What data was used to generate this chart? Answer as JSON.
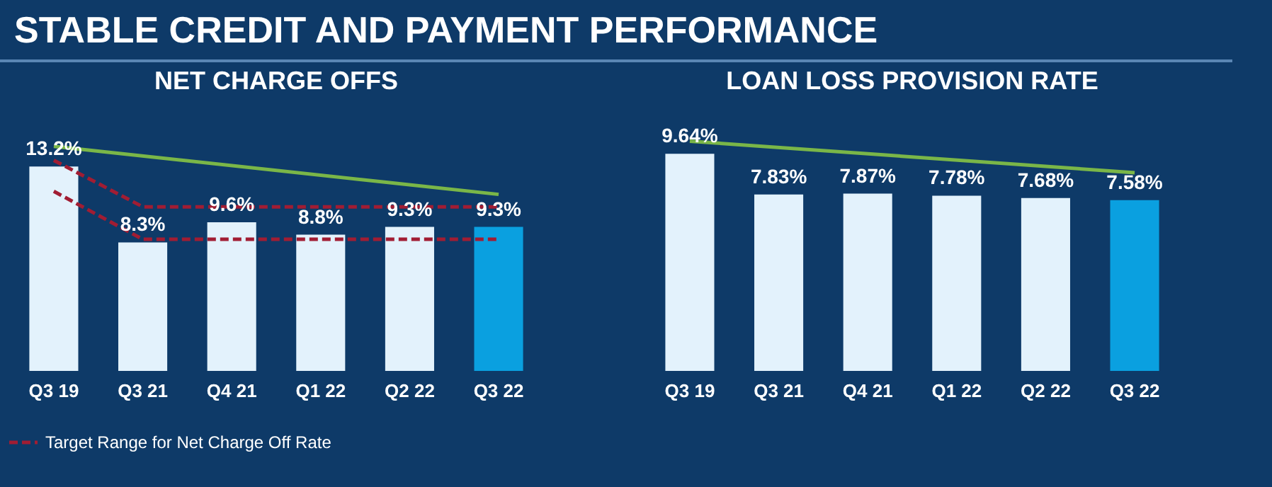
{
  "chart_data": [
    {
      "type": "bar",
      "title": "STABLE CREDIT AND PAYMENT PERFORMANCE",
      "subtitle": "NET CHARGE OFFS",
      "categories": [
        "Q3 19",
        "Q3 21",
        "Q4 21",
        "Q1 22",
        "Q2 22",
        "Q3 22"
      ],
      "tick_labels": "x",
      "legend": "bottom",
      "series": [
        {
          "values": [
            13.2,
            8.3,
            9.6,
            8.8,
            9.3,
            9.3
          ],
          "colors": [
            "#e3f2fc",
            "#e3f2fc",
            "#e3f2fc",
            "#e3f2fc",
            "#e3f2fc",
            "#0aa0e0"
          ],
          "value_labels": [
            "13.2%",
            "8.3%",
            "9.6%",
            "8.8%",
            "9.3%",
            "9.3%"
          ]
        },
        {
          "type": "line",
          "name": "Target Range for Net Charge Off Rate",
          "color": "#a11d33",
          "line_style": "dashed",
          "x": [
            "Q3 19",
            "Q3 21",
            "Q3 22"
          ],
          "values": [
            13.6,
            10.6,
            10.6
          ]
        },
        {
          "type": "line",
          "color": "#a11d33",
          "line_style": "dashed",
          "x": [
            "Q3 19",
            "Q3 21",
            "Q3 22"
          ],
          "values": [
            11.6,
            8.5,
            8.5
          ]
        },
        {
          "type": "line",
          "color": "#7ab648",
          "line_style": "solid",
          "x": [
            "Q3 19",
            "Q3 22"
          ],
          "values": [
            14.5,
            11.4
          ]
        }
      ]
    },
    {
      "type": "bar",
      "subtitle": "LOAN LOSS PROVISION RATE",
      "categories": [
        "Q3 19",
        "Q3 21",
        "Q4 21",
        "Q1 22",
        "Q2 22",
        "Q3 22"
      ],
      "tick_labels": "x",
      "series": [
        {
          "values": [
            9.64,
            7.83,
            7.87,
            7.78,
            7.68,
            7.58
          ],
          "colors": [
            "#e3f2fc",
            "#e3f2fc",
            "#e3f2fc",
            "#e3f2fc",
            "#e3f2fc",
            "#0aa0e0"
          ],
          "value_labels": [
            "9.64%",
            "7.83%",
            "7.87%",
            "7.78%",
            "7.68%",
            "7.58%"
          ]
        },
        {
          "type": "line",
          "color": "#7ab648",
          "line_style": "solid",
          "x": [
            "Q3 19",
            "Q3 22"
          ],
          "values": [
            10.2,
            8.8
          ]
        }
      ]
    }
  ]
}
